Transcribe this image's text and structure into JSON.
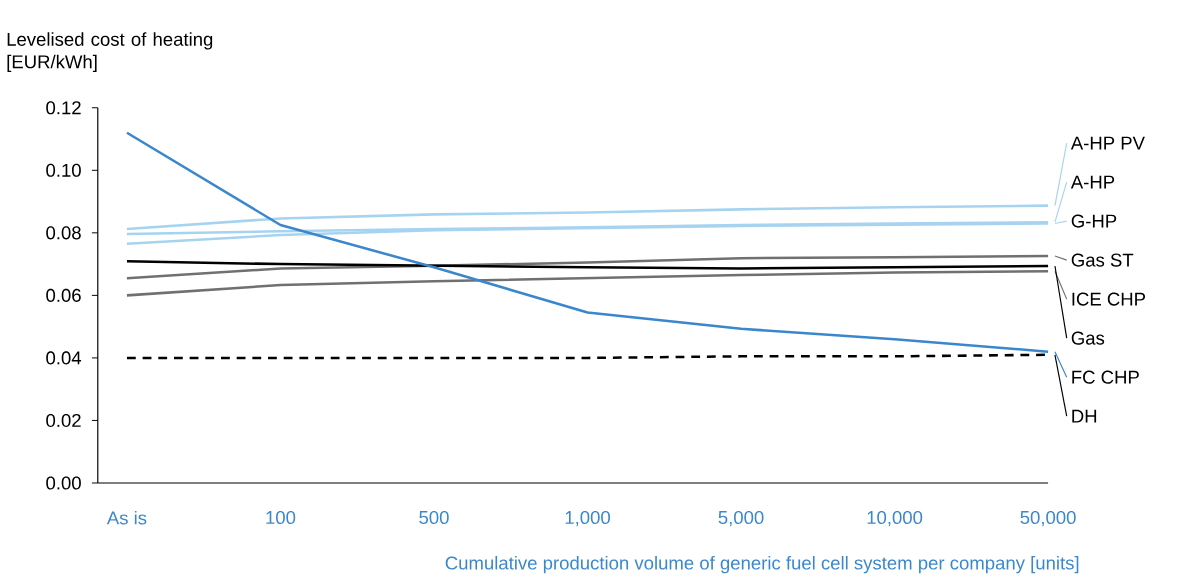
{
  "chart_data": {
    "type": "line",
    "legend": "right",
    "ylabel": "Levelised cost of heating [EUR/kWh]",
    "xlabel": "Cumulative production volume of generic fuel cell system per company [units]",
    "categories": [
      "As is",
      "100",
      "500",
      "1,000",
      "5,000",
      "10,000",
      "50,000"
    ],
    "ylim": [
      0,
      0.12
    ],
    "yticks": [
      {
        "value": 0,
        "label": "0.00"
      },
      0.02,
      0.04,
      0.06,
      0.08,
      {
        "value": 0.1,
        "label": "0.10"
      },
      0.12
    ],
    "series": [
      {
        "name": "A-HP PV",
        "color": "#a6d4f0",
        "values": [
          0.0812,
          0.0846,
          0.0859,
          0.0865,
          0.0875,
          0.0882,
          0.0887
        ]
      },
      {
        "name": "A-HP",
        "color": "#a6d4f0",
        "values": [
          0.0796,
          0.0805,
          0.0812,
          0.0818,
          0.0825,
          0.083,
          0.0834
        ]
      },
      {
        "name": "G-HP",
        "color": "#a6d4f0",
        "values": [
          0.0765,
          0.0793,
          0.0808,
          0.0815,
          0.0822,
          0.0826,
          0.083
        ]
      },
      {
        "name": "Gas ST",
        "color": "#707070",
        "values": [
          0.0655,
          0.0686,
          0.0695,
          0.0705,
          0.0719,
          0.0722,
          0.0726
        ]
      },
      {
        "name": "ICE CHP",
        "color": "#707070",
        "values": [
          0.06,
          0.0633,
          0.0645,
          0.0655,
          0.0665,
          0.0673,
          0.0677
        ]
      },
      {
        "name": "Gas",
        "color": "#000000",
        "values": [
          0.0709,
          0.07,
          0.0695,
          0.069,
          0.0686,
          0.069,
          0.0694
        ]
      },
      {
        "name": "FC CHP",
        "color": "#3a87cc",
        "values": [
          0.112,
          0.0825,
          0.069,
          0.0545,
          0.0493,
          0.046,
          0.042
        ]
      },
      {
        "name": "DH",
        "color": "#000000",
        "line_style": "dashed",
        "values": [
          0.04,
          0.04,
          0.04,
          0.04,
          0.0405,
          0.0405,
          0.041
        ]
      }
    ]
  }
}
